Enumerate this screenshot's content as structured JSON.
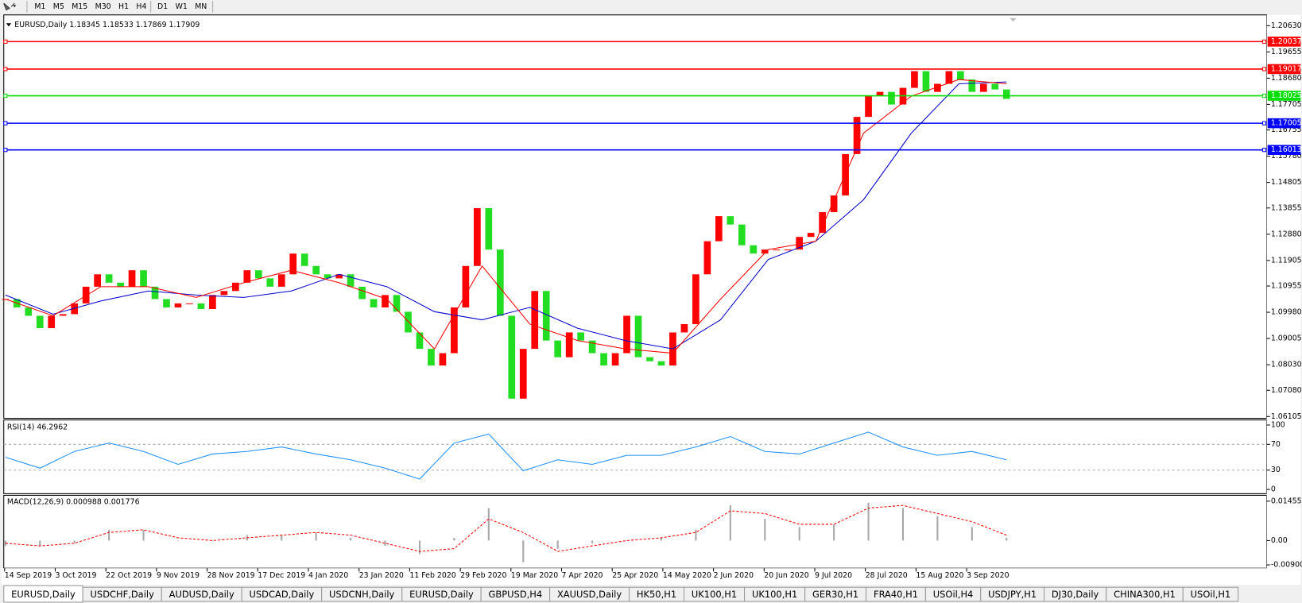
{
  "toolbar": {
    "timeframes": [
      "M1",
      "M5",
      "M15",
      "M30",
      "H1",
      "H4",
      "D1",
      "W1",
      "MN"
    ]
  },
  "chart_data": [
    {
      "type": "candlestick",
      "title": "EURUSD,Daily 1.18345 1.18533 1.17869 1.17909",
      "close": [
        1.1047,
        1.1016,
        1.0985,
        1.0939,
        1.0985,
        1.0991,
        1.1031,
        1.1093,
        1.1139,
        1.1108,
        1.1093,
        1.1154,
        1.1093,
        1.1047,
        1.1016,
        1.1031,
        1.1031,
        1.101,
        1.1062,
        1.1077,
        1.1108,
        1.1154,
        1.1124,
        1.1093,
        1.1139,
        1.1216,
        1.117,
        1.1139,
        1.1124,
        1.1139,
        1.1093,
        1.1047,
        1.1016,
        1.1062,
        1.1,
        1.0923,
        1.0862,
        1.08,
        1.0846,
        1.1016,
        1.117,
        1.1385,
        1.1231,
        1.0985,
        1.0677,
        1.0862,
        1.1077,
        1.0893,
        1.0831,
        1.0923,
        1.0893,
        1.0846,
        1.08,
        1.0846,
        1.0985,
        1.0831,
        1.0816,
        1.08,
        1.0923,
        1.0954,
        1.1139,
        1.1262,
        1.1355,
        1.1324,
        1.1247,
        1.1216,
        1.1231,
        1.1231,
        1.1231,
        1.1278,
        1.1293,
        1.137,
        1.1432,
        1.1586,
        1.1724,
        1.1801,
        1.1817,
        1.177,
        1.1832,
        1.1894,
        1.1817,
        1.1847,
        1.1894,
        1.1863,
        1.1817,
        1.1847,
        1.1826,
        1.17909
      ],
      "up_color": "#ff0000",
      "down_color": "#22dd22",
      "lines": [
        {
          "color": "#0000cc",
          "values": [
            1.1062,
            1.0991,
            1.104,
            1.1077,
            1.1062,
            1.1053,
            1.1077,
            1.1139,
            1.1093,
            1.1,
            1.097,
            1.1016,
            1.0939,
            1.0893,
            1.0862,
            1.097,
            1.1194,
            1.1262,
            1.1416,
            1.1663,
            1.1847,
            1.1854
          ]
        },
        {
          "color": "#ff0000",
          "values": [
            1.1047,
            1.0985,
            1.1093,
            1.1093,
            1.1053,
            1.1108,
            1.1154,
            1.1108,
            1.1047,
            1.0862,
            1.117,
            1.0954,
            1.0893,
            1.0862,
            1.0846,
            1.1047,
            1.1231,
            1.1262,
            1.1663,
            1.1801,
            1.1863,
            1.1847
          ]
        }
      ],
      "levels": [
        {
          "value": 1.20037,
          "color": "#ff0000"
        },
        {
          "value": 1.19017,
          "color": "#ff0000"
        },
        {
          "value": 1.18025,
          "color": "#00dd00"
        },
        {
          "value": 1.17005,
          "color": "#0000ff"
        },
        {
          "value": 1.16013,
          "color": "#0000ff"
        }
      ],
      "ylim": [
        1.0604,
        1.2103
      ],
      "yticks": [
        {
          "value": 1.2063,
          "label": "1.20630"
        },
        1.19655,
        {
          "value": 1.1868,
          "label": "1.18680"
        },
        1.17705,
        1.16755,
        {
          "value": 1.1578,
          "label": "1.15780"
        },
        1.14805,
        1.13855,
        {
          "value": 1.1288,
          "label": "1.12880"
        },
        1.11905,
        1.10955,
        {
          "value": 1.0998,
          "label": "1.09980"
        },
        1.09005,
        {
          "value": 1.0803,
          "label": "1.08030"
        },
        {
          "value": 1.0708,
          "label": "1.07080"
        },
        1.06105
      ],
      "x_labels": [
        "14 Sep 2019",
        "3 Oct 2019",
        "22 Oct 2019",
        "9 Nov 2019",
        "28 Nov 2019",
        "17 Dec 2019",
        "4 Jan 2020",
        "23 Jan 2020",
        "11 Feb 2020",
        "29 Feb 2020",
        "19 Mar 2020",
        "7 Apr 2020",
        "25 Apr 2020",
        "14 May 2020",
        "2 Jun 2020",
        "20 Jun 2020",
        "9 Jul 2020",
        "28 Jul 2020",
        "15 Aug 2020",
        "3 Sep 2020"
      ]
    },
    {
      "type": "line",
      "title": "RSI(14) 46.2962",
      "color": "#1e90ff",
      "values": [
        50,
        33,
        59,
        72,
        59,
        39,
        55,
        59,
        66,
        55,
        46,
        33,
        16,
        72,
        86,
        29,
        46,
        39,
        53,
        53,
        66,
        82,
        59,
        55,
        72,
        89,
        66,
        53,
        59,
        46
      ],
      "ylim": [
        -6.6,
        107.9
      ],
      "yticks": [
        0,
        30,
        70,
        100
      ],
      "levels": [
        30,
        70
      ]
    },
    {
      "type": "macd",
      "title": "MACD(12,26,9) 0.000988 0.001776",
      "histogram": [
        -0.002,
        -0.002,
        -0.001,
        0.004,
        0.004,
        0.0,
        0.0,
        0.002,
        0.002,
        0.003,
        0.001,
        -0.002,
        -0.005,
        0.001,
        0.012,
        -0.008,
        -0.003,
        -0.001,
        0.0,
        0.001,
        0.004,
        0.013,
        0.008,
        0.005,
        0.006,
        0.014,
        0.012,
        0.009,
        0.005,
        0.001
      ],
      "signal": [
        -0.001,
        -0.002,
        -0.001,
        0.003,
        0.004,
        0.001,
        0.0,
        0.001,
        0.002,
        0.003,
        0.002,
        -0.001,
        -0.004,
        -0.003,
        0.008,
        0.003,
        -0.004,
        -0.002,
        0.0,
        0.001,
        0.003,
        0.011,
        0.01,
        0.006,
        0.006,
        0.012,
        0.013,
        0.01,
        0.007,
        0.002
      ],
      "hist_color": "#a8a8a8",
      "signal_color": "#ff0000",
      "ylim": [
        -0.01022,
        0.01672
      ],
      "yticks": [
        0.014556,
        {
          "value": 0,
          "label": "0.00"
        },
        -0.009001
      ]
    }
  ],
  "tabs": {
    "active": 0,
    "items": [
      "EURUSD,Daily",
      "USDCHF,Daily",
      "AUDUSD,Daily",
      "USDCAD,Daily",
      "USDCNH,Daily",
      "EURUSD,Daily",
      "GBPUSD,H4",
      "XAUUSD,Daily",
      "HK50,H1",
      "UK100,H1",
      "UK100,H1",
      "GER30,H1",
      "FRA40,H1",
      "USOil,H4",
      "USDJPY,H1",
      "DJ30,Daily",
      "CHINA300,H1",
      "USOil,H1"
    ]
  }
}
